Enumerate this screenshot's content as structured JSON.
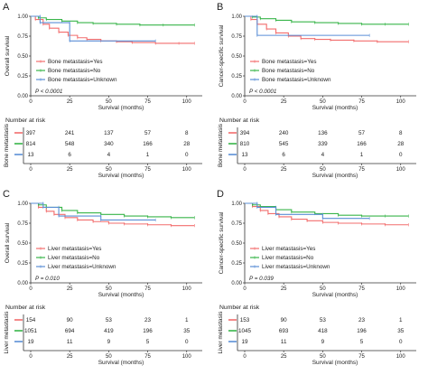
{
  "figure": {
    "panels": [
      {
        "panel_label": "A",
        "ylabel": "Overall survival",
        "risk_ylabel": "Bone metastasis",
        "pvalue": "P < 0.0001"
      },
      {
        "panel_label": "B",
        "ylabel": "Cancer-specific survival",
        "risk_ylabel": "Bone metastasis",
        "pvalue": "P < 0.0001"
      },
      {
        "panel_label": "C",
        "ylabel": "Overall survival",
        "risk_ylabel": "Liver metastasis",
        "pvalue": "P = 0.010"
      },
      {
        "panel_label": "D",
        "ylabel": "Cancer-specific survival",
        "risk_ylabel": "Liver metastasis",
        "pvalue": "P = 0.039"
      }
    ],
    "risk_title": "Number at risk",
    "xlabel": "Survival (months)"
  },
  "colors": {
    "yes": "#f26d6d",
    "no": "#39b54a",
    "unknown": "#5b8fd6"
  },
  "chart_data": [
    {
      "type": "line",
      "title": "A",
      "xlabel": "Survival (months)",
      "ylabel": "Overall survival",
      "xlim": [
        0,
        110
      ],
      "ylim": [
        0,
        1
      ],
      "xticks": [
        0,
        25,
        50,
        75,
        100
      ],
      "yticks": [
        0.0,
        0.25,
        0.5,
        0.75,
        1.0
      ],
      "series": [
        {
          "name": "Bone metastasis=Yes",
          "color": "#f26d6d",
          "x": [
            0,
            3,
            8,
            12,
            18,
            24,
            30,
            36,
            45,
            55,
            65,
            80,
            95,
            105
          ],
          "y": [
            1.0,
            0.96,
            0.9,
            0.85,
            0.8,
            0.76,
            0.73,
            0.71,
            0.69,
            0.68,
            0.67,
            0.66,
            0.66,
            0.66
          ]
        },
        {
          "name": "Bone metastasis=No",
          "color": "#39b54a",
          "x": [
            0,
            5,
            10,
            20,
            30,
            40,
            55,
            70,
            85,
            105
          ],
          "y": [
            1.0,
            0.98,
            0.96,
            0.94,
            0.92,
            0.91,
            0.9,
            0.89,
            0.89,
            0.89
          ]
        },
        {
          "name": "Bone metastasis=Unknown",
          "color": "#5b8fd6",
          "x": [
            0,
            6,
            6,
            25,
            25,
            80
          ],
          "y": [
            1.0,
            1.0,
            0.92,
            0.92,
            0.69,
            0.69
          ]
        }
      ],
      "pvalue": "P < 0.0001",
      "risk_table": {
        "title": "Number at risk",
        "ylabel": "Bone metastasis",
        "times": [
          0,
          25,
          50,
          75,
          100
        ],
        "rows": [
          {
            "group": "Yes",
            "color": "#f26d6d",
            "values": [
              "397",
              "241",
              "137",
              "57",
              "8"
            ]
          },
          {
            "group": "No",
            "color": "#39b54a",
            "values": [
              "814",
              "548",
              "340",
              "166",
              "28"
            ]
          },
          {
            "group": "Unknown",
            "color": "#5b8fd6",
            "values": [
              "13",
              "6",
              "4",
              "1",
              "0"
            ]
          }
        ]
      }
    },
    {
      "type": "line",
      "title": "B",
      "xlabel": "Survival (months)",
      "ylabel": "Cancer-specific survival",
      "xlim": [
        0,
        110
      ],
      "ylim": [
        0,
        1
      ],
      "xticks": [
        0,
        25,
        50,
        75,
        100
      ],
      "yticks": [
        0.0,
        0.25,
        0.5,
        0.75,
        1.0
      ],
      "series": [
        {
          "name": "Bone metastasis=Yes",
          "color": "#f26d6d",
          "x": [
            0,
            4,
            8,
            14,
            20,
            28,
            36,
            45,
            55,
            70,
            85,
            105
          ],
          "y": [
            1.0,
            0.96,
            0.9,
            0.84,
            0.79,
            0.75,
            0.72,
            0.71,
            0.7,
            0.69,
            0.68,
            0.68
          ]
        },
        {
          "name": "Bone metastasis=No",
          "color": "#39b54a",
          "x": [
            0,
            5,
            10,
            20,
            30,
            45,
            60,
            75,
            90,
            105
          ],
          "y": [
            1.0,
            0.99,
            0.97,
            0.95,
            0.93,
            0.92,
            0.91,
            0.9,
            0.9,
            0.9
          ]
        },
        {
          "name": "Bone metastasis=Unknown",
          "color": "#5b8fd6",
          "x": [
            0,
            8,
            8,
            80
          ],
          "y": [
            1.0,
            1.0,
            0.76,
            0.76
          ]
        }
      ],
      "pvalue": "P < 0.0001",
      "risk_table": {
        "title": "Number at risk",
        "ylabel": "Bone metastasis",
        "times": [
          0,
          25,
          50,
          75,
          100
        ],
        "rows": [
          {
            "group": "Yes",
            "color": "#f26d6d",
            "values": [
              "394",
              "240",
              "136",
              "57",
              "8"
            ]
          },
          {
            "group": "No",
            "color": "#39b54a",
            "values": [
              "810",
              "545",
              "339",
              "166",
              "28"
            ]
          },
          {
            "group": "Unknown",
            "color": "#5b8fd6",
            "values": [
              "13",
              "6",
              "4",
              "1",
              "0"
            ]
          }
        ]
      }
    },
    {
      "type": "line",
      "title": "C",
      "xlabel": "Survival (months)",
      "ylabel": "Overall survival",
      "xlim": [
        0,
        110
      ],
      "ylim": [
        0,
        1
      ],
      "xticks": [
        0,
        25,
        50,
        75,
        100
      ],
      "yticks": [
        0.0,
        0.25,
        0.5,
        0.75,
        1.0
      ],
      "series": [
        {
          "name": "Liver metastasis=Yes",
          "color": "#f26d6d",
          "x": [
            0,
            5,
            10,
            15,
            22,
            30,
            40,
            50,
            60,
            75,
            90,
            105
          ],
          "y": [
            1.0,
            0.95,
            0.9,
            0.86,
            0.82,
            0.79,
            0.77,
            0.75,
            0.74,
            0.73,
            0.72,
            0.72
          ]
        },
        {
          "name": "Liver metastasis=No",
          "color": "#39b54a",
          "x": [
            0,
            5,
            10,
            20,
            30,
            45,
            60,
            75,
            90,
            105
          ],
          "y": [
            1.0,
            0.98,
            0.95,
            0.91,
            0.88,
            0.86,
            0.84,
            0.83,
            0.82,
            0.82
          ]
        },
        {
          "name": "Liver metastasis=Unknown",
          "color": "#5b8fd6",
          "x": [
            0,
            8,
            8,
            18,
            18,
            45,
            45,
            80
          ],
          "y": [
            1.0,
            1.0,
            0.95,
            0.95,
            0.84,
            0.84,
            0.79,
            0.79
          ]
        }
      ],
      "pvalue": "P = 0.010",
      "risk_table": {
        "title": "Number at risk",
        "ylabel": "Liver metastasis",
        "times": [
          0,
          25,
          50,
          75,
          100
        ],
        "rows": [
          {
            "group": "Yes",
            "color": "#f26d6d",
            "values": [
              "154",
              "90",
              "53",
              "23",
              "1"
            ]
          },
          {
            "group": "No",
            "color": "#39b54a",
            "values": [
              "1051",
              "694",
              "419",
              "196",
              "35"
            ]
          },
          {
            "group": "Unknown",
            "color": "#5b8fd6",
            "values": [
              "19",
              "11",
              "9",
              "5",
              "0"
            ]
          }
        ]
      }
    },
    {
      "type": "line",
      "title": "D",
      "xlabel": "Survival (months)",
      "ylabel": "Cancer-specific survival",
      "xlim": [
        0,
        110
      ],
      "ylim": [
        0,
        1
      ],
      "xticks": [
        0,
        25,
        50,
        75,
        100
      ],
      "yticks": [
        0.0,
        0.25,
        0.5,
        0.75,
        1.0
      ],
      "series": [
        {
          "name": "Liver metastasis=Yes",
          "color": "#f26d6d",
          "x": [
            0,
            5,
            10,
            15,
            22,
            30,
            40,
            50,
            60,
            75,
            90,
            105
          ],
          "y": [
            1.0,
            0.96,
            0.91,
            0.87,
            0.83,
            0.8,
            0.78,
            0.76,
            0.75,
            0.74,
            0.73,
            0.73
          ]
        },
        {
          "name": "Liver metastasis=No",
          "color": "#39b54a",
          "x": [
            0,
            5,
            10,
            20,
            30,
            45,
            60,
            75,
            90,
            105
          ],
          "y": [
            1.0,
            0.98,
            0.96,
            0.92,
            0.89,
            0.87,
            0.85,
            0.84,
            0.84,
            0.84
          ]
        },
        {
          "name": "Liver metastasis=Unknown",
          "color": "#5b8fd6",
          "x": [
            0,
            8,
            8,
            20,
            20,
            50,
            50,
            80
          ],
          "y": [
            1.0,
            1.0,
            0.95,
            0.95,
            0.86,
            0.86,
            0.81,
            0.81
          ]
        }
      ],
      "pvalue": "P = 0.039",
      "risk_table": {
        "title": "Number at risk",
        "ylabel": "Liver metastasis",
        "times": [
          0,
          25,
          50,
          75,
          100
        ],
        "rows": [
          {
            "group": "Yes",
            "color": "#f26d6d",
            "values": [
              "153",
              "90",
              "53",
              "23",
              "1"
            ]
          },
          {
            "group": "No",
            "color": "#39b54a",
            "values": [
              "1045",
              "693",
              "418",
              "196",
              "35"
            ]
          },
          {
            "group": "Unknown",
            "color": "#5b8fd6",
            "values": [
              "19",
              "11",
              "9",
              "5",
              "0"
            ]
          }
        ]
      }
    }
  ]
}
